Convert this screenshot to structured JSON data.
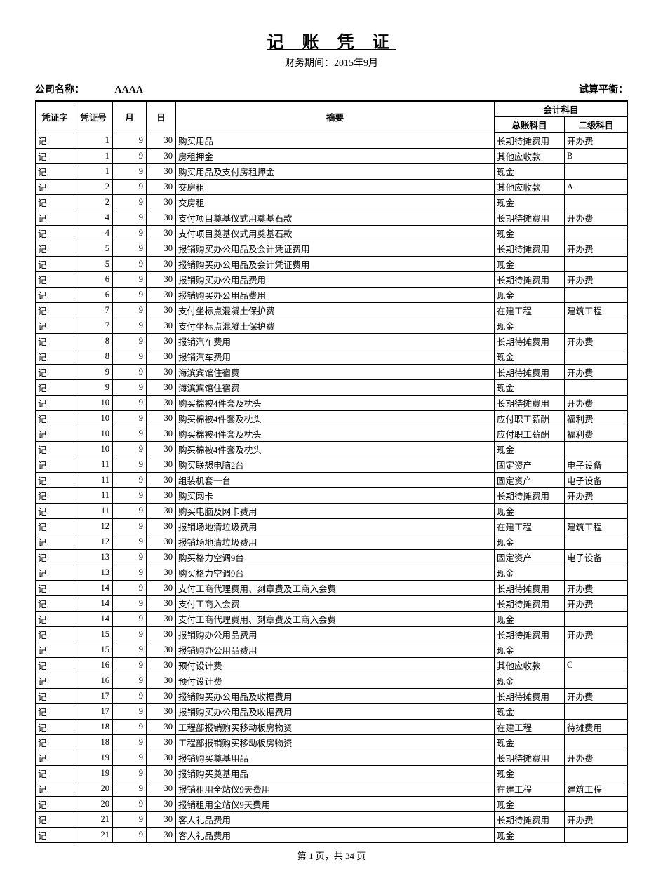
{
  "title": "记 账 凭 证",
  "period_label": "财务期间：",
  "period_value": "2015年9月",
  "company_label": "公司名称：",
  "company_value": "AAAA",
  "balance_label": "试算平衡：",
  "footer": "第 1 页，共 34 页",
  "columns": {
    "voucher_word": "凭证字",
    "voucher_no": "凭证号",
    "month": "月",
    "day": "日",
    "summary": "摘要",
    "account_group": "会计科目",
    "gl_account": "总账科目",
    "sub_account": "二级科目"
  },
  "col_widths": {
    "word": 55,
    "num": 55,
    "month": 48,
    "day": 42,
    "acct1": 100,
    "acct2": 90
  },
  "rows": [
    {
      "w": "记",
      "n": "1",
      "m": "9",
      "d": "30",
      "s": "购买用品",
      "a1": "长期待摊费用",
      "a2": "开办费"
    },
    {
      "w": "记",
      "n": "1",
      "m": "9",
      "d": "30",
      "s": "房租押金",
      "a1": "其他应收款",
      "a2": "B"
    },
    {
      "w": "记",
      "n": "1",
      "m": "9",
      "d": "30",
      "s": "购买用品及支付房租押金",
      "a1": "现金",
      "a2": ""
    },
    {
      "w": "记",
      "n": "2",
      "m": "9",
      "d": "30",
      "s": "交房租",
      "a1": "其他应收款",
      "a2": "A"
    },
    {
      "w": "记",
      "n": "2",
      "m": "9",
      "d": "30",
      "s": "交房租",
      "a1": "现金",
      "a2": ""
    },
    {
      "w": "记",
      "n": "4",
      "m": "9",
      "d": "30",
      "s": "支付项目奠基仪式用奠基石款",
      "a1": "长期待摊费用",
      "a2": "开办费"
    },
    {
      "w": "记",
      "n": "4",
      "m": "9",
      "d": "30",
      "s": "支付项目奠基仪式用奠基石款",
      "a1": "现金",
      "a2": ""
    },
    {
      "w": "记",
      "n": "5",
      "m": "9",
      "d": "30",
      "s": "报销购买办公用品及会计凭证费用",
      "a1": "长期待摊费用",
      "a2": "开办费"
    },
    {
      "w": "记",
      "n": "5",
      "m": "9",
      "d": "30",
      "s": "报销购买办公用品及会计凭证费用",
      "a1": "现金",
      "a2": ""
    },
    {
      "w": "记",
      "n": "6",
      "m": "9",
      "d": "30",
      "s": "报销购买办公用品费用",
      "a1": "长期待摊费用",
      "a2": "开办费"
    },
    {
      "w": "记",
      "n": "6",
      "m": "9",
      "d": "30",
      "s": "报销购买办公用品费用",
      "a1": "现金",
      "a2": ""
    },
    {
      "w": "记",
      "n": "7",
      "m": "9",
      "d": "30",
      "s": "支付坐标点混凝土保护费",
      "a1": "在建工程",
      "a2": "建筑工程"
    },
    {
      "w": "记",
      "n": "7",
      "m": "9",
      "d": "30",
      "s": "支付坐标点混凝土保护费",
      "a1": "现金",
      "a2": ""
    },
    {
      "w": "记",
      "n": "8",
      "m": "9",
      "d": "30",
      "s": "报销汽车费用",
      "a1": "长期待摊费用",
      "a2": "开办费"
    },
    {
      "w": "记",
      "n": "8",
      "m": "9",
      "d": "30",
      "s": "报销汽车费用",
      "a1": "现金",
      "a2": ""
    },
    {
      "w": "记",
      "n": "9",
      "m": "9",
      "d": "30",
      "s": "海滨宾馆住宿费",
      "a1": "长期待摊费用",
      "a2": "开办费"
    },
    {
      "w": "记",
      "n": "9",
      "m": "9",
      "d": "30",
      "s": "海滨宾馆住宿费",
      "a1": "现金",
      "a2": ""
    },
    {
      "w": "记",
      "n": "10",
      "m": "9",
      "d": "30",
      "s": "购买棉被4件套及枕头",
      "a1": "长期待摊费用",
      "a2": "开办费"
    },
    {
      "w": "记",
      "n": "10",
      "m": "9",
      "d": "30",
      "s": "购买棉被4件套及枕头",
      "a1": "应付职工薪酬",
      "a2": "福利费"
    },
    {
      "w": "记",
      "n": "10",
      "m": "9",
      "d": "30",
      "s": "购买棉被4件套及枕头",
      "a1": "应付职工薪酬",
      "a2": "福利费"
    },
    {
      "w": "记",
      "n": "10",
      "m": "9",
      "d": "30",
      "s": "购买棉被4件套及枕头",
      "a1": "现金",
      "a2": ""
    },
    {
      "w": "记",
      "n": "11",
      "m": "9",
      "d": "30",
      "s": "购买联想电脑2台",
      "a1": "固定资产",
      "a2": "电子设备"
    },
    {
      "w": "记",
      "n": "11",
      "m": "9",
      "d": "30",
      "s": "组装机套一台",
      "a1": "固定资产",
      "a2": "电子设备"
    },
    {
      "w": "记",
      "n": "11",
      "m": "9",
      "d": "30",
      "s": "购买网卡",
      "a1": "长期待摊费用",
      "a2": "开办费"
    },
    {
      "w": "记",
      "n": "11",
      "m": "9",
      "d": "30",
      "s": "购买电脑及网卡费用",
      "a1": "现金",
      "a2": ""
    },
    {
      "w": "记",
      "n": "12",
      "m": "9",
      "d": "30",
      "s": "报销场地清垃圾费用",
      "a1": "在建工程",
      "a2": "建筑工程"
    },
    {
      "w": "记",
      "n": "12",
      "m": "9",
      "d": "30",
      "s": "报销场地清垃圾费用",
      "a1": "现金",
      "a2": ""
    },
    {
      "w": "记",
      "n": "13",
      "m": "9",
      "d": "30",
      "s": "购买格力空调9台",
      "a1": "固定资产",
      "a2": "电子设备"
    },
    {
      "w": "记",
      "n": "13",
      "m": "9",
      "d": "30",
      "s": "购买格力空调9台",
      "a1": "现金",
      "a2": ""
    },
    {
      "w": "记",
      "n": "14",
      "m": "9",
      "d": "30",
      "s": "支付工商代理费用、刻章费及工商入会费",
      "a1": "长期待摊费用",
      "a2": "开办费"
    },
    {
      "w": "记",
      "n": "14",
      "m": "9",
      "d": "30",
      "s": "支付工商入会费",
      "a1": "长期待摊费用",
      "a2": "开办费"
    },
    {
      "w": "记",
      "n": "14",
      "m": "9",
      "d": "30",
      "s": "支付工商代理费用、刻章费及工商入会费",
      "a1": "现金",
      "a2": ""
    },
    {
      "w": "记",
      "n": "15",
      "m": "9",
      "d": "30",
      "s": "报销购办公用品费用",
      "a1": "长期待摊费用",
      "a2": "开办费"
    },
    {
      "w": "记",
      "n": "15",
      "m": "9",
      "d": "30",
      "s": "报销购办公用品费用",
      "a1": "现金",
      "a2": ""
    },
    {
      "w": "记",
      "n": "16",
      "m": "9",
      "d": "30",
      "s": "预付设计费",
      "a1": "其他应收款",
      "a2": "C"
    },
    {
      "w": "记",
      "n": "16",
      "m": "9",
      "d": "30",
      "s": "预付设计费",
      "a1": "现金",
      "a2": ""
    },
    {
      "w": "记",
      "n": "17",
      "m": "9",
      "d": "30",
      "s": "报销购买办公用品及收据费用",
      "a1": "长期待摊费用",
      "a2": "开办费"
    },
    {
      "w": "记",
      "n": "17",
      "m": "9",
      "d": "30",
      "s": "报销购买办公用品及收据费用",
      "a1": "现金",
      "a2": ""
    },
    {
      "w": "记",
      "n": "18",
      "m": "9",
      "d": "30",
      "s": "工程部报销购买移动板房物资",
      "a1": "在建工程",
      "a2": "待摊费用"
    },
    {
      "w": "记",
      "n": "18",
      "m": "9",
      "d": "30",
      "s": "工程部报销购买移动板房物资",
      "a1": "现金",
      "a2": ""
    },
    {
      "w": "记",
      "n": "19",
      "m": "9",
      "d": "30",
      "s": "报销购买奠基用品",
      "a1": "长期待摊费用",
      "a2": "开办费"
    },
    {
      "w": "记",
      "n": "19",
      "m": "9",
      "d": "30",
      "s": "报销购买奠基用品",
      "a1": "现金",
      "a2": ""
    },
    {
      "w": "记",
      "n": "20",
      "m": "9",
      "d": "30",
      "s": "报销租用全站仪9天费用",
      "a1": "在建工程",
      "a2": "建筑工程"
    },
    {
      "w": "记",
      "n": "20",
      "m": "9",
      "d": "30",
      "s": "报销租用全站仪9天费用",
      "a1": "现金",
      "a2": ""
    },
    {
      "w": "记",
      "n": "21",
      "m": "9",
      "d": "30",
      "s": "客人礼品费用",
      "a1": "长期待摊费用",
      "a2": "开办费"
    },
    {
      "w": "记",
      "n": "21",
      "m": "9",
      "d": "30",
      "s": "客人礼品费用",
      "a1": "现金",
      "a2": ""
    }
  ]
}
